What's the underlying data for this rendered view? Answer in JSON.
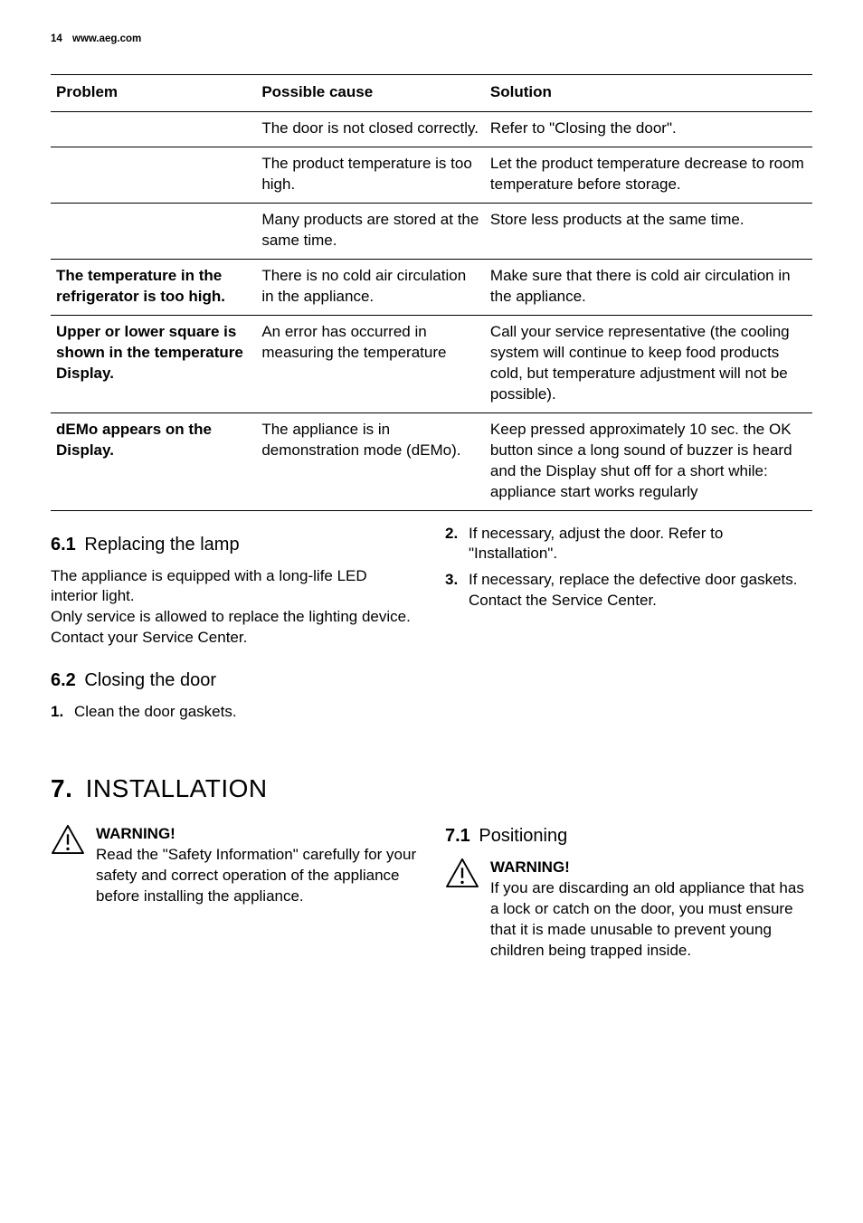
{
  "header": {
    "page_number": "14",
    "site": "www.aeg.com"
  },
  "table": {
    "headers": [
      "Problem",
      "Possible cause",
      "Solution"
    ],
    "rows": [
      {
        "problem": " ",
        "cause": "The door is not closed correctly.",
        "solution": "Refer to \"Closing the door\"."
      },
      {
        "problem": " ",
        "cause": "The product temperature is too high.",
        "solution": "Let the product temperature decrease to room temperature before storage."
      },
      {
        "problem": " ",
        "cause": "Many products are stored at the same time.",
        "solution": "Store less products at the same time."
      },
      {
        "problem": "The temperature in the refrigerator is too high.",
        "cause": "There is no cold air circulation in the appliance.",
        "solution": "Make sure that there is cold air circulation in the appliance."
      },
      {
        "problem": "Upper or lower square is shown in the temperature Display.",
        "cause": "An error has occurred in measuring the temperature",
        "solution": "Call your service representative (the cooling system will continue to keep food products cold, but temperature adjustment will not be possible)."
      },
      {
        "problem": "dEMo appears on the Display.",
        "cause": "The appliance is in demonstration mode (dEMo).",
        "solution": "Keep pressed approximately 10 sec. the OK button since a long sound of buzzer is heard and the Display shut off for a short while: appliance start works regularly"
      }
    ]
  },
  "sec61": {
    "num": "6.1",
    "title": "Replacing the lamp",
    "body": "The appliance is equipped with a long-life LED interior light.\nOnly service is allowed to replace the lighting device. Contact your Service Center."
  },
  "sec62": {
    "num": "6.2",
    "title": "Closing the door",
    "steps": [
      {
        "n": "1.",
        "t": "Clean the door gaskets."
      },
      {
        "n": "2.",
        "t": "If necessary, adjust the door. Refer to \"Installation\"."
      },
      {
        "n": "3.",
        "t": "If necessary, replace the defective door gaskets. Contact the Service Center."
      }
    ]
  },
  "sec7": {
    "num": "7.",
    "title": "INSTALLATION",
    "warning1": {
      "title": "WARNING!",
      "text": "Read the \"Safety Information\" carefully for your safety and correct operation of the appliance before installing the appliance."
    },
    "sub71": {
      "num": "7.1",
      "title": "Positioning",
      "warning": {
        "title": "WARNING!",
        "text": "If you are discarding an old appliance that has a lock or catch on the door, you must ensure that it is made unusable to prevent young children being trapped inside."
      }
    }
  }
}
